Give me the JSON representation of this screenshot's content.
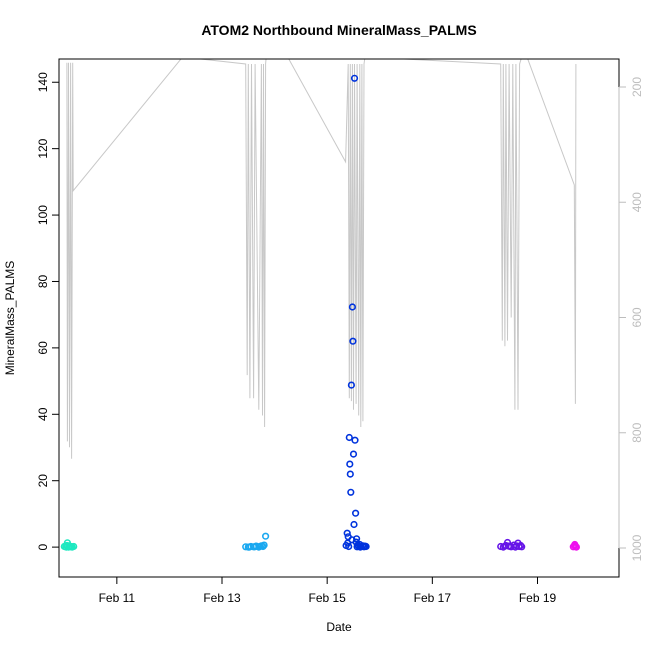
{
  "chart_data": {
    "type": "scatter",
    "title": "ATOM2 Northbound MineralMass_PALMS",
    "xlabel": "Date",
    "ylabel": "MineralMass_PALMS",
    "x_ticks": [
      "Feb 11",
      "Feb 13",
      "Feb 15",
      "Feb 17",
      "Feb 19"
    ],
    "x_tick_days": [
      11,
      13,
      15,
      17,
      19
    ],
    "xlim": [
      9.9,
      20.55
    ],
    "ylim": [
      -9,
      147
    ],
    "y_ticks": [
      0,
      20,
      40,
      60,
      80,
      100,
      120,
      140
    ],
    "y2_ticks": [
      200,
      400,
      600,
      800,
      1000
    ],
    "y2_reversed": true,
    "y2_range": [
      140,
      1040
    ],
    "grid": false,
    "colors": {
      "altitude_line": "#c8c8c8",
      "axis": "#000000",
      "y2_axis": "#bdbdbd"
    },
    "altitude_trace": [
      [
        10.05,
        158
      ],
      [
        10.06,
        815
      ],
      [
        10.08,
        158
      ],
      [
        10.1,
        825
      ],
      [
        10.12,
        158
      ],
      [
        10.14,
        845
      ],
      [
        10.16,
        158
      ],
      [
        10.17,
        380
      ],
      [
        12.25,
        148
      ],
      [
        13.45,
        160
      ],
      [
        13.48,
        700
      ],
      [
        13.5,
        160
      ],
      [
        13.53,
        740
      ],
      [
        13.56,
        160
      ],
      [
        13.6,
        740
      ],
      [
        13.63,
        160
      ],
      [
        13.7,
        760
      ],
      [
        13.75,
        160
      ],
      [
        13.77,
        770
      ],
      [
        13.79,
        160
      ],
      [
        13.81,
        790
      ],
      [
        13.83,
        160
      ],
      [
        13.84,
        148
      ],
      [
        14.25,
        148
      ],
      [
        15.35,
        330
      ],
      [
        15.4,
        160
      ],
      [
        15.42,
        740
      ],
      [
        15.44,
        160
      ],
      [
        15.46,
        745
      ],
      [
        15.48,
        160
      ],
      [
        15.5,
        760
      ],
      [
        15.52,
        160
      ],
      [
        15.55,
        750
      ],
      [
        15.57,
        160
      ],
      [
        15.6,
        770
      ],
      [
        15.62,
        160
      ],
      [
        15.64,
        790
      ],
      [
        15.66,
        160
      ],
      [
        15.68,
        780
      ],
      [
        15.7,
        160
      ],
      [
        15.72,
        148
      ],
      [
        18.3,
        160
      ],
      [
        18.33,
        640
      ],
      [
        18.35,
        160
      ],
      [
        18.38,
        650
      ],
      [
        18.4,
        160
      ],
      [
        18.43,
        640
      ],
      [
        18.46,
        160
      ],
      [
        18.5,
        600
      ],
      [
        18.53,
        160
      ],
      [
        18.57,
        760
      ],
      [
        18.59,
        160
      ],
      [
        18.61,
        450
      ],
      [
        18.63,
        760
      ],
      [
        18.66,
        160
      ],
      [
        18.7,
        148
      ],
      [
        18.8,
        148
      ],
      [
        19.7,
        370
      ],
      [
        19.72,
        750
      ],
      [
        19.73,
        160
      ]
    ],
    "series": [
      {
        "color": "#1ee8c0",
        "points": [
          [
            10.0,
            0.2
          ],
          [
            10.03,
            0.1
          ],
          [
            10.05,
            0.5
          ],
          [
            10.06,
            1.3
          ],
          [
            10.08,
            0.0
          ],
          [
            10.1,
            0.3
          ],
          [
            10.12,
            0.1
          ],
          [
            10.15,
            0.0
          ],
          [
            10.18,
            0.2
          ],
          [
            10.04,
            0.0
          ],
          [
            10.09,
            0.4
          ],
          [
            10.13,
            0.2
          ]
        ]
      },
      {
        "color": "#1aa8f0",
        "points": [
          [
            13.45,
            0.1
          ],
          [
            13.5,
            0.0
          ],
          [
            13.55,
            0.2
          ],
          [
            13.6,
            0.1
          ],
          [
            13.65,
            0.3
          ],
          [
            13.7,
            0.0
          ],
          [
            13.75,
            0.4
          ],
          [
            13.78,
            0.2
          ],
          [
            13.8,
            0.6
          ],
          [
            13.83,
            3.3
          ],
          [
            13.52,
            0.0
          ],
          [
            13.62,
            0.1
          ],
          [
            13.72,
            0.2
          ]
        ]
      },
      {
        "color": "#0033dd",
        "points": [
          [
            15.38,
            4.2
          ],
          [
            15.4,
            3.1
          ],
          [
            15.42,
            33.0
          ],
          [
            15.43,
            25.0
          ],
          [
            15.44,
            22.0
          ],
          [
            15.45,
            16.5
          ],
          [
            15.46,
            48.8
          ],
          [
            15.47,
            2.2
          ],
          [
            15.48,
            72.3
          ],
          [
            15.49,
            62.0
          ],
          [
            15.5,
            28.0
          ],
          [
            15.51,
            6.8
          ],
          [
            15.52,
            141.2
          ],
          [
            15.53,
            32.2
          ],
          [
            15.54,
            10.2
          ],
          [
            15.55,
            1.5
          ],
          [
            15.56,
            2.5
          ],
          [
            15.58,
            0.6
          ],
          [
            15.6,
            0.3
          ],
          [
            15.62,
            0.8
          ],
          [
            15.65,
            0.2
          ],
          [
            15.68,
            0.4
          ],
          [
            15.7,
            0.1
          ],
          [
            15.72,
            0.3
          ],
          [
            15.36,
            0.5
          ],
          [
            15.39,
            1.2
          ],
          [
            15.41,
            0.2
          ],
          [
            15.57,
            0.1
          ],
          [
            15.63,
            0.0
          ],
          [
            15.74,
            0.2
          ]
        ]
      },
      {
        "color": "#6615e8",
        "points": [
          [
            18.3,
            0.2
          ],
          [
            18.35,
            0.0
          ],
          [
            18.4,
            0.5
          ],
          [
            18.43,
            1.4
          ],
          [
            18.45,
            0.3
          ],
          [
            18.5,
            0.1
          ],
          [
            18.55,
            0.6
          ],
          [
            18.6,
            0.4
          ],
          [
            18.63,
            1.2
          ],
          [
            18.65,
            0.2
          ],
          [
            18.68,
            0.5
          ],
          [
            18.7,
            0.1
          ],
          [
            18.38,
            0.3
          ],
          [
            18.48,
            0.2
          ],
          [
            18.58,
            0.0
          ]
        ]
      },
      {
        "color": "#ee10ee",
        "points": [
          [
            19.68,
            0.1
          ],
          [
            19.7,
            0.5
          ],
          [
            19.72,
            0.2
          ],
          [
            19.74,
            0.0
          ],
          [
            19.71,
            0.8
          ]
        ]
      }
    ]
  }
}
